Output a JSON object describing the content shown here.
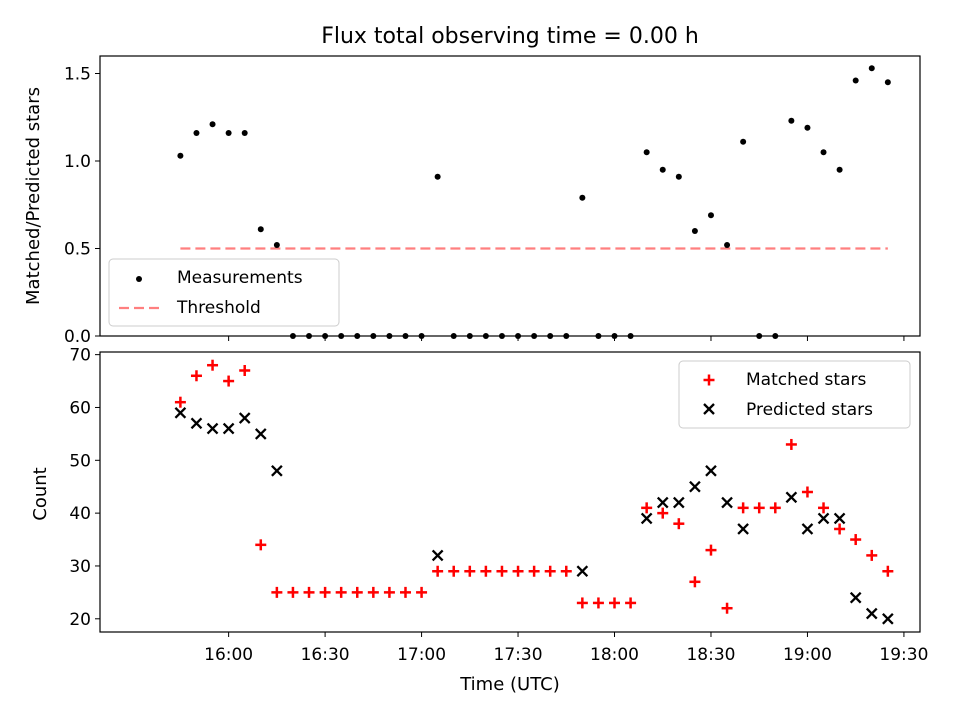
{
  "figure_title": "Flux total observing time = 0.00 h",
  "chart_data": [
    {
      "type": "scatter",
      "title": "Flux total observing time = 0.00 h",
      "xlabel": "",
      "ylabel": "Matched/Predicted stars",
      "xlim_minutes": [
        920,
        1175
      ],
      "ylim": [
        0,
        1.6
      ],
      "yticks": [
        "0.0",
        "0.5",
        "1.0",
        "1.5"
      ],
      "legend_position": "lower-left",
      "series": [
        {
          "name": "Measurements",
          "marker": "dot",
          "color": "#000000",
          "x": [
            "15:45",
            "15:50",
            "15:55",
            "16:00",
            "16:05",
            "16:10",
            "16:15",
            "16:20",
            "16:25",
            "16:30",
            "16:35",
            "16:40",
            "16:45",
            "16:50",
            "16:55",
            "17:00",
            "17:05",
            "17:10",
            "17:15",
            "17:20",
            "17:25",
            "17:30",
            "17:35",
            "17:40",
            "17:45",
            "17:50",
            "17:55",
            "18:00",
            "18:05",
            "18:10",
            "18:15",
            "18:20",
            "18:25",
            "18:30",
            "18:35",
            "18:40",
            "18:45",
            "18:50",
            "18:55",
            "19:00",
            "19:05",
            "19:10",
            "19:15",
            "19:20",
            "19:25"
          ],
          "y": [
            1.03,
            1.16,
            1.21,
            1.16,
            1.16,
            0.61,
            0.52,
            0,
            0,
            0,
            0,
            0,
            0,
            0,
            0,
            0,
            0.91,
            0,
            0,
            0,
            0,
            0,
            0,
            0,
            0,
            0.79,
            0,
            0,
            0,
            1.05,
            0.95,
            0.91,
            0.6,
            0.69,
            0.52,
            1.11,
            0,
            0,
            1.23,
            1.19,
            1.05,
            0.95,
            1.46,
            1.53,
            1.45
          ]
        },
        {
          "name": "Threshold",
          "style": "dashed",
          "color": "#ff7f7f",
          "x": [
            "15:45",
            "19:25"
          ],
          "y": [
            0.5,
            0.5
          ]
        }
      ]
    },
    {
      "type": "scatter",
      "xlabel": "Time (UTC)",
      "ylabel": "Count",
      "xlim_minutes": [
        920,
        1175
      ],
      "ylim": [
        17.5,
        70.5
      ],
      "yticks": [
        "20",
        "30",
        "40",
        "50",
        "60",
        "70"
      ],
      "xticks": [
        "16:00",
        "16:30",
        "17:00",
        "17:30",
        "18:00",
        "18:30",
        "19:00",
        "19:30"
      ],
      "legend_position": "upper-right",
      "series": [
        {
          "name": "Matched stars",
          "marker": "plus",
          "color": "#ff0000",
          "x": [
            "15:45",
            "15:50",
            "15:55",
            "16:00",
            "16:05",
            "16:10",
            "16:15",
            "16:20",
            "16:25",
            "16:30",
            "16:35",
            "16:40",
            "16:45",
            "16:50",
            "16:55",
            "17:00",
            "17:05",
            "17:10",
            "17:15",
            "17:20",
            "17:25",
            "17:30",
            "17:35",
            "17:40",
            "17:45",
            "17:50",
            "17:55",
            "18:00",
            "18:05",
            "18:10",
            "18:15",
            "18:20",
            "18:25",
            "18:30",
            "18:35",
            "18:40",
            "18:45",
            "18:50",
            "18:55",
            "19:00",
            "19:05",
            "19:10",
            "19:15",
            "19:20",
            "19:25"
          ],
          "y": [
            61,
            66,
            68,
            65,
            67,
            34,
            25,
            25,
            25,
            25,
            25,
            25,
            25,
            25,
            25,
            25,
            29,
            29,
            29,
            29,
            29,
            29,
            29,
            29,
            29,
            23,
            23,
            23,
            23,
            41,
            40,
            38,
            27,
            33,
            22,
            41,
            41,
            41,
            53,
            44,
            41,
            37,
            35,
            32,
            29
          ]
        },
        {
          "name": "Predicted stars",
          "marker": "x",
          "color": "#000000",
          "x": [
            "15:45",
            "15:50",
            "15:55",
            "16:00",
            "16:05",
            "16:10",
            "16:15",
            "17:05",
            "17:50",
            "18:10",
            "18:15",
            "18:20",
            "18:25",
            "18:30",
            "18:35",
            "18:40",
            "18:55",
            "19:00",
            "19:05",
            "19:10",
            "19:15",
            "19:20",
            "19:25"
          ],
          "y": [
            59,
            57,
            56,
            56,
            58,
            55,
            48,
            32,
            29,
            39,
            42,
            42,
            45,
            48,
            42,
            37,
            43,
            37,
            39,
            39,
            24,
            21,
            20
          ]
        }
      ]
    }
  ]
}
